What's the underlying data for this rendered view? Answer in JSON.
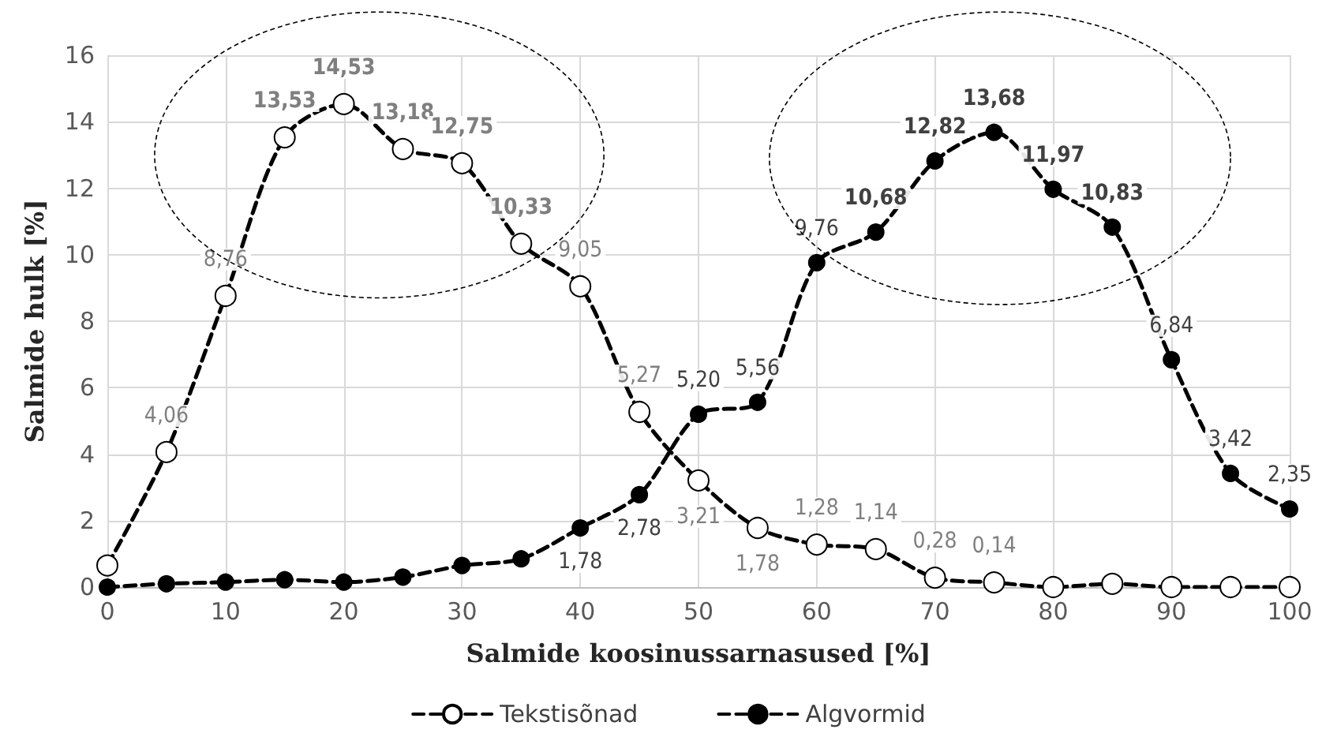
{
  "chart_data": {
    "type": "line",
    "xlabel": "Salmide koosinussarnasused [%]",
    "ylabel": "Salmide hulk [%]",
    "x": [
      0,
      5,
      10,
      15,
      20,
      25,
      30,
      35,
      40,
      45,
      50,
      55,
      60,
      65,
      70,
      75,
      80,
      85,
      90,
      95,
      100
    ],
    "series": [
      {
        "name": "Tekstisõnad",
        "color": "#000000",
        "line_style": "dashed",
        "values": [
          0.65,
          4.06,
          8.76,
          13.53,
          14.53,
          13.18,
          12.75,
          10.33,
          9.05,
          5.27,
          3.21,
          1.78,
          1.28,
          1.14,
          0.28,
          0.14,
          0,
          0.1,
          0,
          0,
          0
        ],
        "value_labels": [
          null,
          "4,06",
          "8,76",
          "13,53",
          "14,53",
          "13,18",
          "12,75",
          "10,33",
          "9,05",
          "5,27",
          "3,21",
          "1,78",
          "1,28",
          "1,14",
          "0,28",
          "0,14",
          null,
          null,
          null,
          null,
          null
        ]
      },
      {
        "name": "Algvormid",
        "color": "#000000",
        "line_style": "dashed",
        "values": [
          0,
          0.1,
          0.15,
          0.22,
          0.15,
          0.3,
          0.65,
          0.85,
          1.78,
          2.78,
          5.2,
          5.56,
          9.76,
          10.68,
          12.82,
          13.68,
          11.97,
          10.83,
          6.84,
          3.42,
          2.35
        ],
        "value_labels": [
          null,
          null,
          null,
          null,
          null,
          null,
          null,
          null,
          "1,78",
          "2,78",
          "5,20",
          "5,56",
          "9,76",
          "10,68",
          "12,82",
          "13,68",
          "11,97",
          "10,83",
          "6,84",
          "3,42",
          "2,35"
        ]
      }
    ],
    "xlim": [
      0,
      100
    ],
    "xticks": [
      0,
      10,
      20,
      30,
      40,
      50,
      60,
      70,
      80,
      90,
      100
    ],
    "ylim": [
      0,
      16
    ],
    "yticks": [
      0,
      2,
      4,
      6,
      8,
      10,
      12,
      14,
      16
    ],
    "grid": true,
    "legend": "bottom",
    "marker": "circle"
  }
}
